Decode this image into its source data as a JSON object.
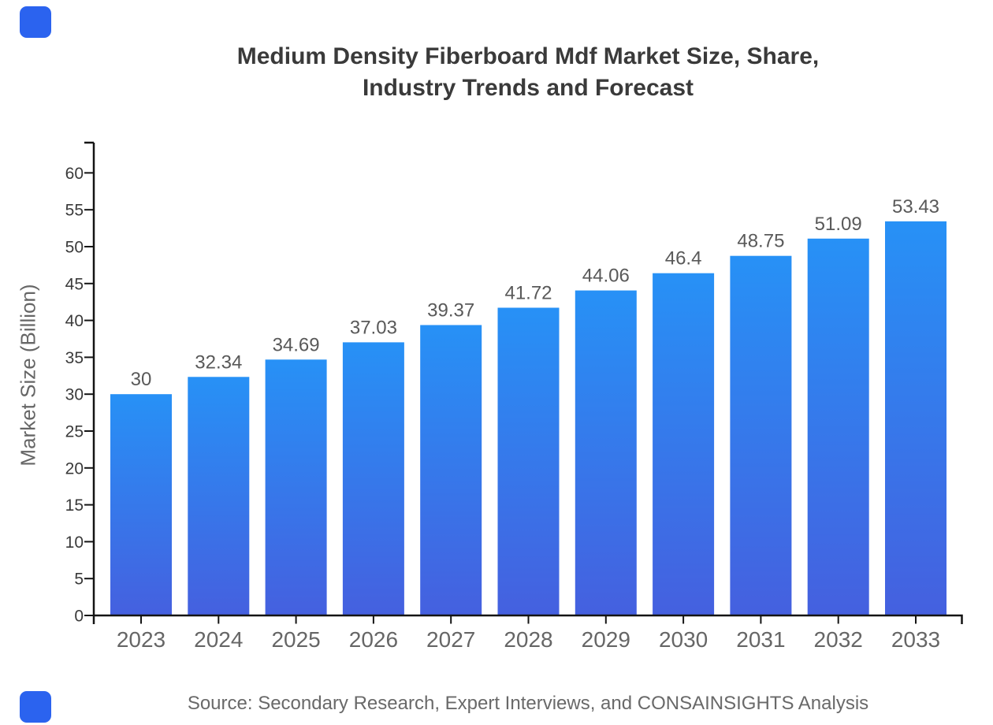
{
  "page": {
    "title_line1": "Medium Density Fiberboard Mdf Market Size, Share,",
    "title_line2": "Industry Trends and Forecast",
    "source": "Source: Secondary Research, Expert Interviews, and CONSAINSIGHTS Analysis",
    "brand_color": "#2b63ef"
  },
  "chart_data": {
    "type": "bar",
    "title": "Medium Density Fiberboard Mdf Market Size, Share, Industry Trends and Forecast",
    "categories": [
      "2023",
      "2024",
      "2025",
      "2026",
      "2027",
      "2028",
      "2029",
      "2030",
      "2031",
      "2032",
      "2033"
    ],
    "values": [
      30,
      32.34,
      34.69,
      37.03,
      39.37,
      41.72,
      44.06,
      46.4,
      48.75,
      51.09,
      53.43
    ],
    "value_labels": [
      "30",
      "32.34",
      "34.69",
      "37.03",
      "39.37",
      "41.72",
      "44.06",
      "46.4",
      "48.75",
      "51.09",
      "53.43"
    ],
    "xlabel": "",
    "ylabel": "Market Size (Billion)",
    "ylim": [
      0,
      64
    ],
    "yticks": [
      0,
      5,
      10,
      15,
      20,
      25,
      30,
      35,
      40,
      45,
      50,
      55,
      60
    ],
    "grid": false,
    "legend_position": "none",
    "source": "Source: Secondary Research, Expert Interviews, and CONSAINSIGHTS Analysis",
    "colors": {
      "bar_gradient_top": "#2791f6",
      "bar_gradient_bottom": "#4560df",
      "axis": "#141414",
      "value_label": "#595959",
      "x_tick_label": "#666666",
      "y_tick_label": "#3a3a3a"
    }
  }
}
